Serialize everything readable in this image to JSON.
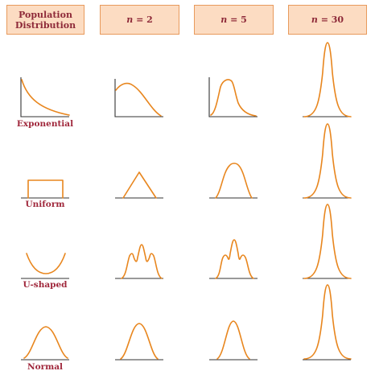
{
  "headers": {
    "population": "Population\nDistribution",
    "n2": {
      "var": "n",
      "rest": " = 2"
    },
    "n5": {
      "var": "n",
      "rest": " = 5"
    },
    "n30": {
      "var": "n",
      "rest": " = 30"
    }
  },
  "rows": [
    {
      "label": "Exponential",
      "name": "exponential"
    },
    {
      "label": "Uniform",
      "name": "uniform"
    },
    {
      "label": "U-shaped",
      "name": "u-shaped"
    },
    {
      "label": "Normal",
      "name": "normal"
    }
  ],
  "colors": {
    "curve": "#e8861e",
    "axis": "#333333",
    "header_fill": "#fcdcc2",
    "header_border": "#e89a5c",
    "header_text": "#8e2a39",
    "row_label": "#a0283c"
  }
}
